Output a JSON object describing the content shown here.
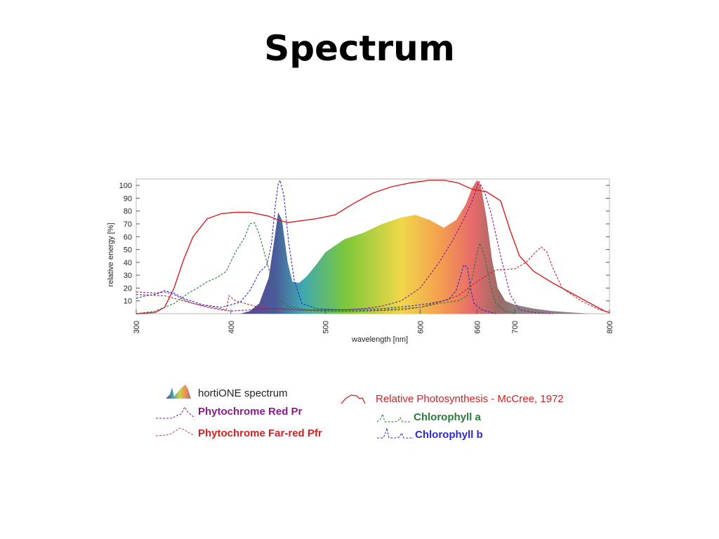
{
  "page": {
    "title": "Spectrum"
  },
  "chart_data": {
    "type": "line",
    "xlabel": "wavelength [nm]",
    "ylabel": "relative energy [%]",
    "xlim": [
      300,
      800
    ],
    "ylim": [
      0,
      105
    ],
    "grid": false,
    "x_ticks": [
      300,
      400,
      500,
      600,
      660,
      700,
      800
    ],
    "x_tick_labels": [
      "300",
      "400",
      "500",
      "600",
      "660",
      "700",
      "800"
    ],
    "y_ticks": [
      10,
      20,
      30,
      40,
      50,
      60,
      70,
      80,
      90,
      100
    ],
    "y_tick_labels": [
      "10",
      "20",
      "30",
      "40",
      "50",
      "60",
      "70",
      "80",
      "90",
      "100"
    ],
    "legend_position": "bottom",
    "series": [
      {
        "name": "hortiONE spectrum",
        "style": "filled-gradient",
        "color": "#8a8a8a",
        "points": [
          [
            410,
            0
          ],
          [
            420,
            2
          ],
          [
            430,
            8
          ],
          [
            440,
            28
          ],
          [
            446,
            58
          ],
          [
            450,
            79
          ],
          [
            454,
            73
          ],
          [
            460,
            40
          ],
          [
            465,
            25
          ],
          [
            472,
            24
          ],
          [
            480,
            29
          ],
          [
            490,
            38
          ],
          [
            500,
            48
          ],
          [
            520,
            58
          ],
          [
            540,
            63
          ],
          [
            560,
            70
          ],
          [
            580,
            75
          ],
          [
            595,
            77
          ],
          [
            610,
            73
          ],
          [
            625,
            67
          ],
          [
            638,
            73
          ],
          [
            648,
            85
          ],
          [
            655,
            98
          ],
          [
            660,
            104
          ],
          [
            664,
            100
          ],
          [
            670,
            75
          ],
          [
            676,
            42
          ],
          [
            682,
            20
          ],
          [
            690,
            10
          ],
          [
            700,
            7
          ],
          [
            720,
            4
          ],
          [
            740,
            2
          ],
          [
            760,
            1
          ],
          [
            780,
            0
          ]
        ]
      },
      {
        "name": "Relative Photosynthesis - McCree, 1972",
        "style": "solid",
        "color": "#d42020",
        "points": [
          [
            300,
            0
          ],
          [
            320,
            1
          ],
          [
            330,
            5
          ],
          [
            340,
            20
          ],
          [
            350,
            42
          ],
          [
            360,
            60
          ],
          [
            375,
            74
          ],
          [
            390,
            78
          ],
          [
            405,
            79
          ],
          [
            420,
            79
          ],
          [
            440,
            76
          ],
          [
            450,
            73
          ],
          [
            460,
            71
          ],
          [
            470,
            72
          ],
          [
            490,
            74
          ],
          [
            510,
            77
          ],
          [
            530,
            86
          ],
          [
            550,
            94
          ],
          [
            570,
            99
          ],
          [
            590,
            102
          ],
          [
            610,
            104
          ],
          [
            625,
            104
          ],
          [
            640,
            102
          ],
          [
            655,
            97
          ],
          [
            670,
            95
          ],
          [
            685,
            88
          ],
          [
            695,
            65
          ],
          [
            705,
            45
          ],
          [
            720,
            33
          ],
          [
            740,
            24
          ],
          [
            760,
            16
          ],
          [
            780,
            8
          ],
          [
            795,
            2
          ],
          [
            800,
            1
          ]
        ]
      },
      {
        "name": "Phytochrome Red Pr",
        "style": "dashed",
        "color": "#8a1a8a",
        "points": [
          [
            300,
            17
          ],
          [
            320,
            16
          ],
          [
            330,
            17
          ],
          [
            340,
            15
          ],
          [
            350,
            11
          ],
          [
            360,
            8
          ],
          [
            375,
            5
          ],
          [
            390,
            3
          ],
          [
            400,
            2
          ],
          [
            420,
            3
          ],
          [
            440,
            4
          ],
          [
            460,
            4
          ],
          [
            480,
            3
          ],
          [
            500,
            3
          ],
          [
            520,
            3
          ],
          [
            540,
            4
          ],
          [
            560,
            6
          ],
          [
            580,
            10
          ],
          [
            600,
            20
          ],
          [
            620,
            40
          ],
          [
            635,
            58
          ],
          [
            645,
            72
          ],
          [
            655,
            88
          ],
          [
            662,
            103
          ],
          [
            668,
            95
          ],
          [
            675,
            78
          ],
          [
            685,
            45
          ],
          [
            695,
            15
          ],
          [
            705,
            3
          ],
          [
            720,
            1
          ],
          [
            740,
            0
          ]
        ]
      },
      {
        "name": "Phytochrome Far-red Pfr",
        "style": "dashed",
        "color": "#c02828",
        "points": [
          [
            300,
            15
          ],
          [
            330,
            14
          ],
          [
            360,
            8
          ],
          [
            395,
            3
          ],
          [
            398,
            14
          ],
          [
            405,
            10
          ],
          [
            430,
            5
          ],
          [
            460,
            3
          ],
          [
            500,
            2
          ],
          [
            540,
            2
          ],
          [
            580,
            3
          ],
          [
            600,
            5
          ],
          [
            620,
            9
          ],
          [
            640,
            14
          ],
          [
            660,
            25
          ],
          [
            680,
            34
          ],
          [
            700,
            35
          ],
          [
            712,
            40
          ],
          [
            722,
            48
          ],
          [
            728,
            52
          ],
          [
            734,
            48
          ],
          [
            740,
            36
          ],
          [
            750,
            20
          ],
          [
            770,
            10
          ],
          [
            790,
            3
          ],
          [
            800,
            1
          ]
        ]
      },
      {
        "name": "Chlorophyll a",
        "style": "dashed",
        "color": "#2a7a3a",
        "points": [
          [
            300,
            0
          ],
          [
            320,
            2
          ],
          [
            340,
            8
          ],
          [
            355,
            16
          ],
          [
            365,
            20
          ],
          [
            375,
            25
          ],
          [
            385,
            28
          ],
          [
            395,
            33
          ],
          [
            405,
            48
          ],
          [
            415,
            60
          ],
          [
            420,
            70
          ],
          [
            425,
            71
          ],
          [
            430,
            62
          ],
          [
            440,
            35
          ],
          [
            450,
            12
          ],
          [
            460,
            6
          ],
          [
            480,
            3
          ],
          [
            520,
            2
          ],
          [
            560,
            3
          ],
          [
            600,
            5
          ],
          [
            620,
            8
          ],
          [
            640,
            10
          ],
          [
            650,
            14
          ],
          [
            655,
            28
          ],
          [
            660,
            47
          ],
          [
            663,
            55
          ],
          [
            668,
            45
          ],
          [
            675,
            20
          ],
          [
            680,
            8
          ],
          [
            690,
            2
          ],
          [
            700,
            0
          ]
        ]
      },
      {
        "name": "Chlorophyll b",
        "style": "dashed",
        "color": "#2a2ad0",
        "points": [
          [
            300,
            12
          ],
          [
            310,
            14
          ],
          [
            320,
            15
          ],
          [
            330,
            18
          ],
          [
            340,
            16
          ],
          [
            350,
            12
          ],
          [
            370,
            7
          ],
          [
            390,
            5
          ],
          [
            410,
            9
          ],
          [
            420,
            18
          ],
          [
            430,
            32
          ],
          [
            438,
            38
          ],
          [
            443,
            55
          ],
          [
            447,
            85
          ],
          [
            450,
            101
          ],
          [
            452,
            104
          ],
          [
            456,
            92
          ],
          [
            461,
            56
          ],
          [
            467,
            26
          ],
          [
            475,
            8
          ],
          [
            490,
            4
          ],
          [
            520,
            3
          ],
          [
            560,
            4
          ],
          [
            590,
            6
          ],
          [
            610,
            8
          ],
          [
            630,
            11
          ],
          [
            638,
            18
          ],
          [
            643,
            30
          ],
          [
            646,
            38
          ],
          [
            650,
            36
          ],
          [
            653,
            20
          ],
          [
            657,
            8
          ],
          [
            665,
            3
          ],
          [
            680,
            0
          ]
        ]
      }
    ]
  },
  "legend": {
    "hortione": "hortiONE spectrum",
    "phyto_red": "Phytochrome Red Pr",
    "phyto_farred": "Phytochrome Far-red Pfr",
    "mccree": "Relative Photosynthesis - McCree, 1972",
    "chl_a": "Chlorophyll a",
    "chl_b": "Chlorophyll b"
  },
  "colors": {
    "mccree": "#d42020",
    "phyto_red": "#8a1a8a",
    "phyto_farred": "#c02828",
    "chl_a": "#2a7a3a",
    "chl_b": "#2a2ad0"
  }
}
